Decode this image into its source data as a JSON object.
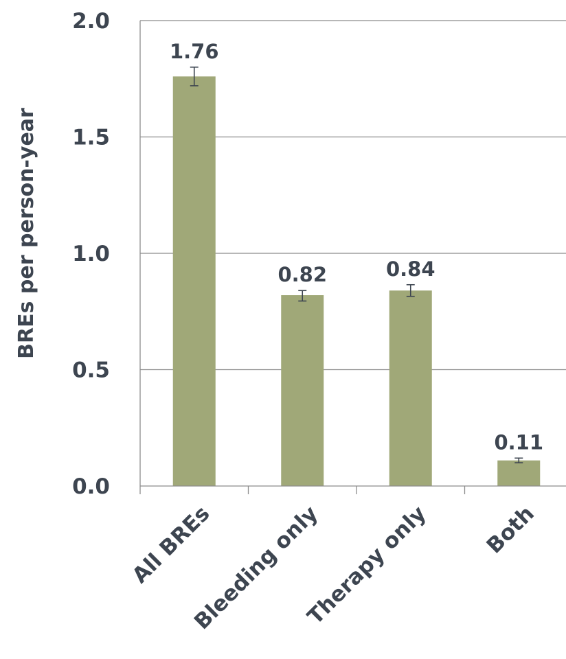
{
  "chart_data": {
    "type": "bar",
    "title": "",
    "xlabel": "",
    "ylabel": "BREs per person-year",
    "categories": [
      "All BREs",
      "Bleeding only",
      "Therapy only",
      "Both"
    ],
    "values": [
      1.76,
      0.82,
      0.84,
      0.11
    ],
    "value_labels": [
      "1.76",
      "0.82",
      "0.84",
      "0.11"
    ],
    "error_low": [
      1.72,
      0.795,
      0.815,
      0.1
    ],
    "error_high": [
      1.8,
      0.84,
      0.865,
      0.12
    ],
    "ylim": [
      0,
      2.0
    ],
    "yticks": [
      0,
      0.5,
      1.0,
      1.5,
      2.0
    ],
    "ytick_labels": [
      "0.0",
      "0.5",
      "1.0",
      "1.5",
      "2.0"
    ],
    "grid": true,
    "legend": "none",
    "colors": {
      "bar": "#a0a878",
      "text": "#3d4550",
      "axis": "#8c8c8c"
    }
  }
}
